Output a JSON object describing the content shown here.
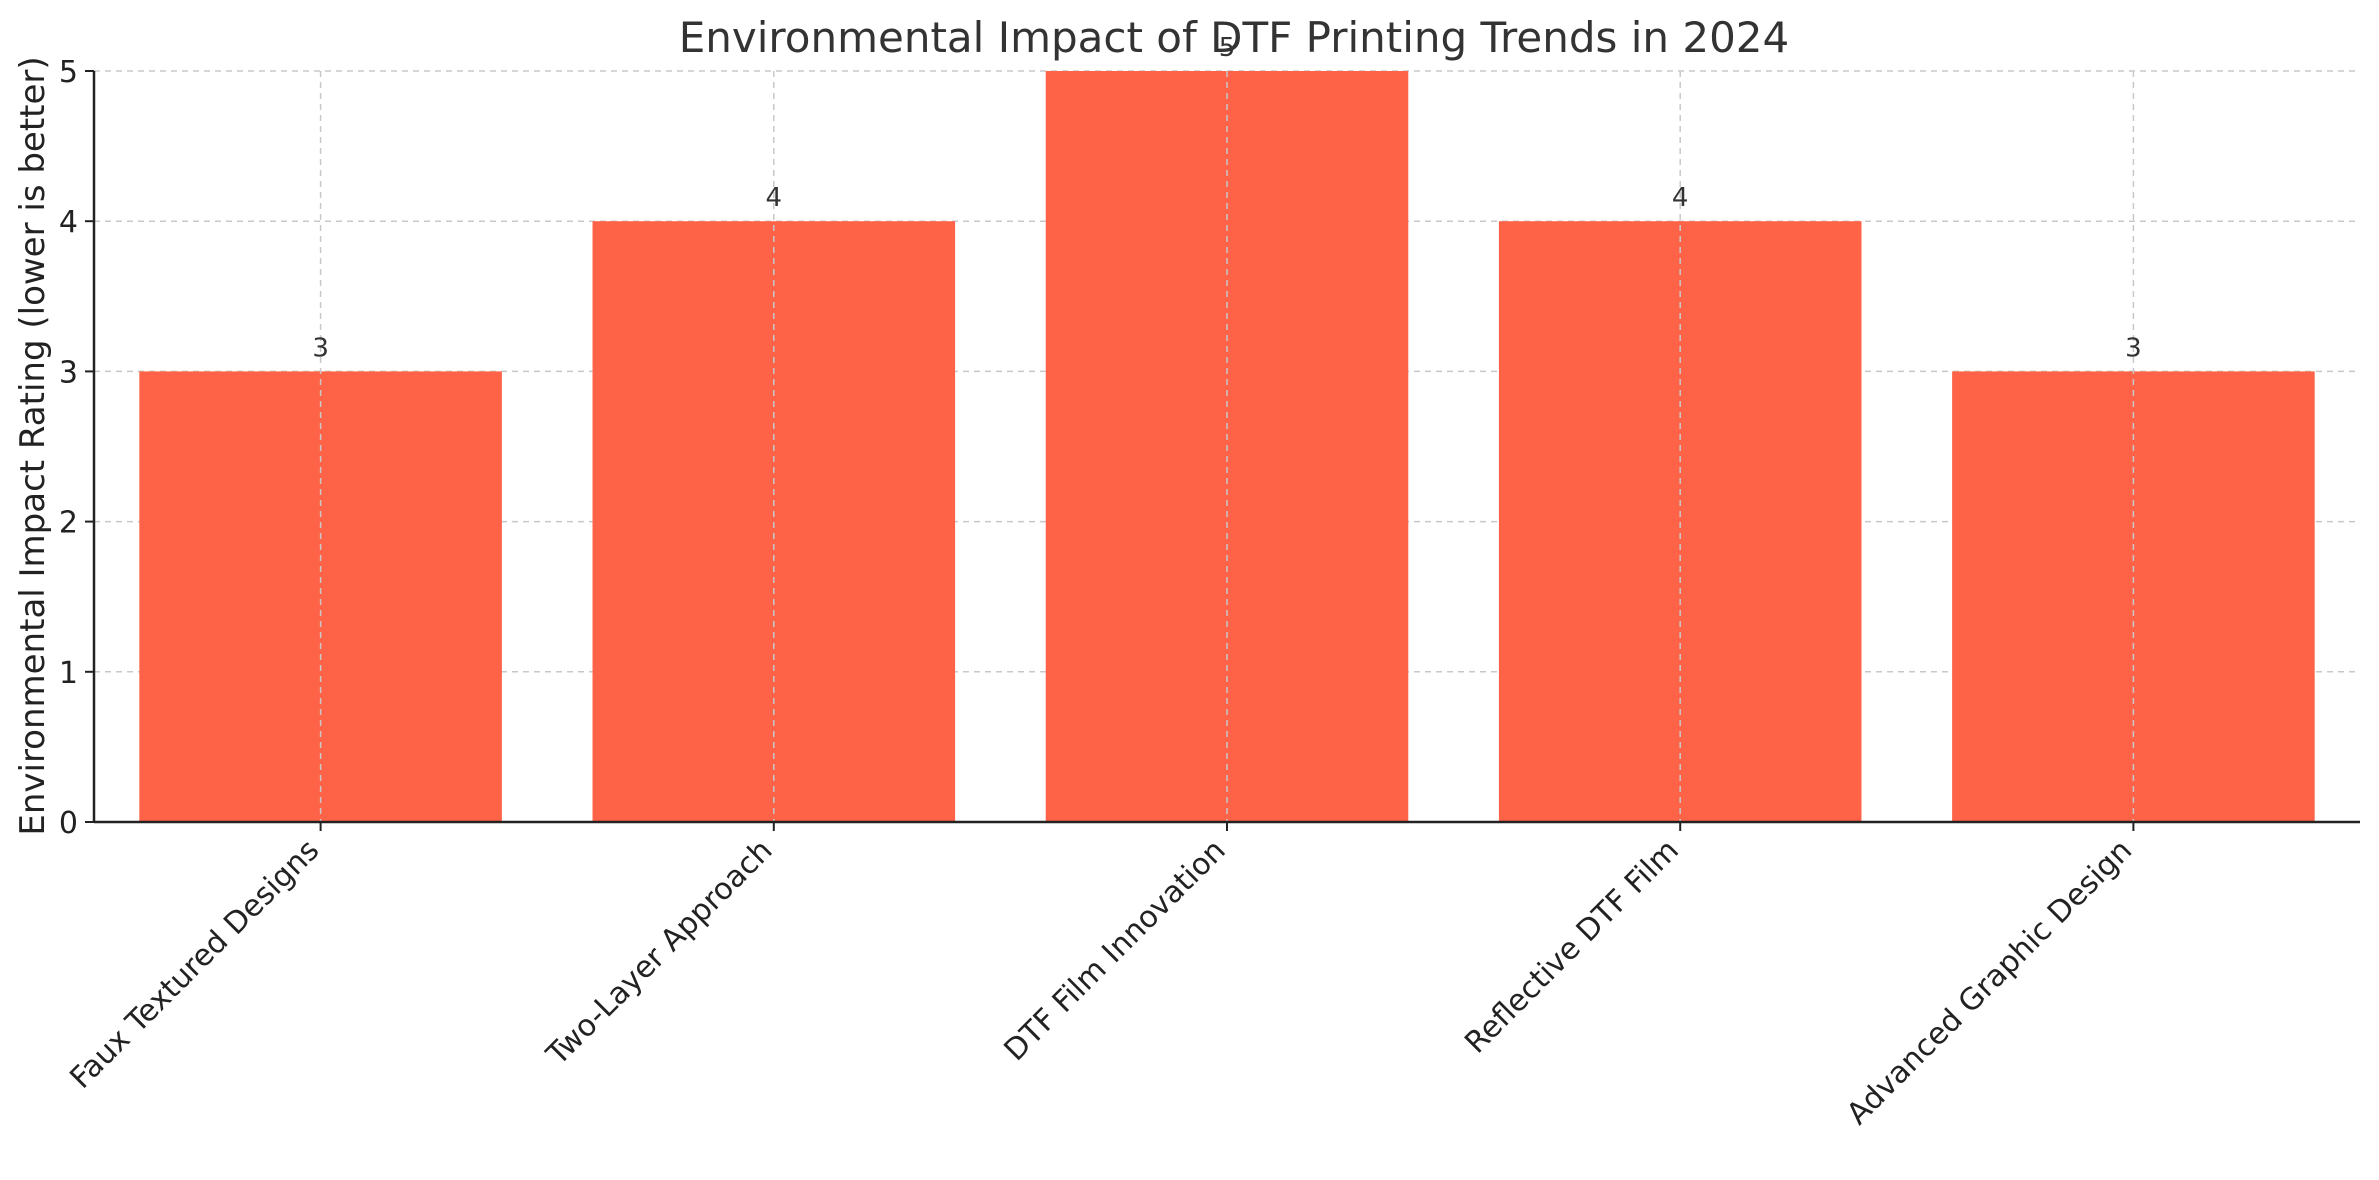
{
  "chart_data": {
    "type": "bar",
    "title": "Environmental Impact of DTF Printing Trends in 2024",
    "xlabel": "",
    "ylabel": "Environmental Impact Rating (lower is better)",
    "categories": [
      "Faux Textured Designs",
      "Two-Layer Approach",
      "DTF Film Innovation",
      "Reflective DTF Film",
      "Advanced Graphic Design"
    ],
    "values": [
      3,
      4,
      5,
      4,
      3
    ],
    "ylim": [
      0,
      5
    ],
    "yticks": [
      "0",
      "1",
      "2",
      "3",
      "4",
      "5"
    ],
    "bar_color": "#ff6347",
    "grid": true,
    "data_labels": true
  }
}
